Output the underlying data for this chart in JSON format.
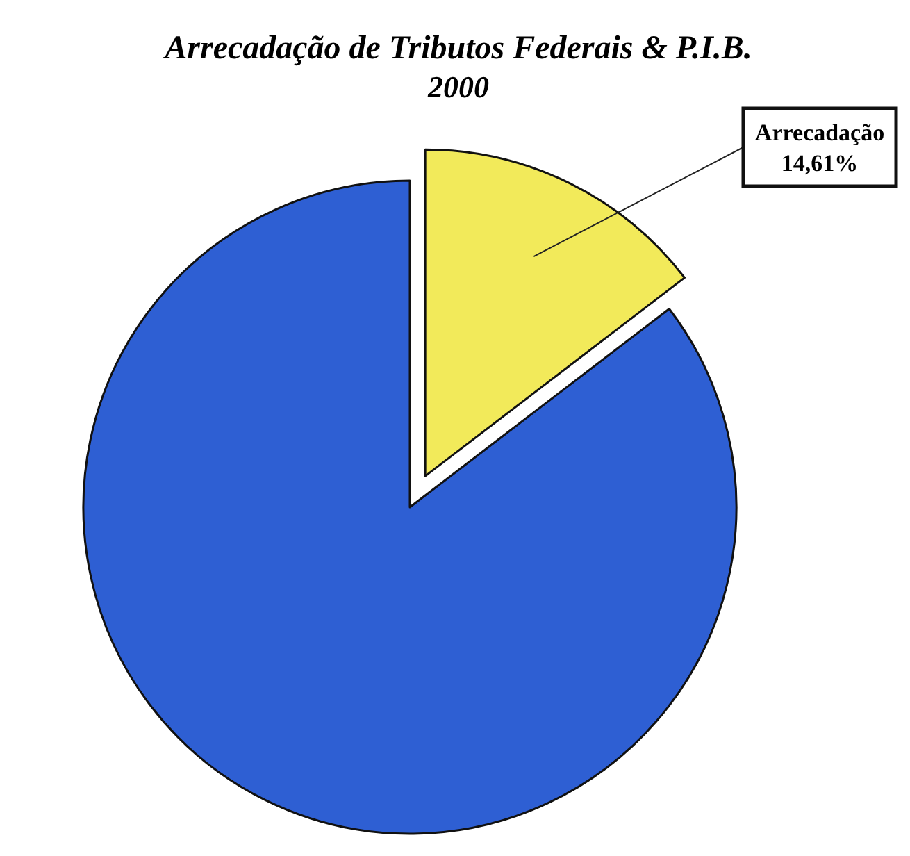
{
  "chart_data": {
    "type": "pie",
    "title": "Arrecadação de Tributos Federais & P.I.B.",
    "subtitle": "2000",
    "categories": [
      "Arrecadação",
      null
    ],
    "values": [
      14.61,
      85.39
    ],
    "value_labels": [
      "14,61%",
      null
    ],
    "colors": [
      "#f2ea5a",
      "#2e5fd3"
    ]
  }
}
